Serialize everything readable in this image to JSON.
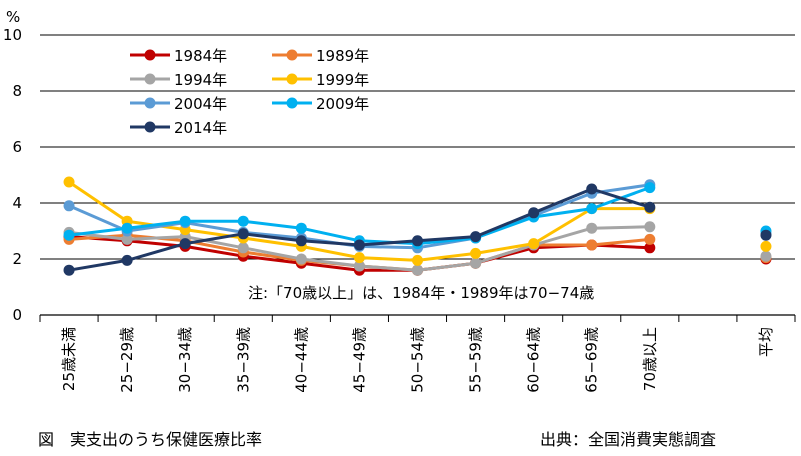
{
  "chart_data": {
    "type": "line",
    "y_unit": "%",
    "ylim": [
      0,
      10
    ],
    "yticks": [
      0,
      2,
      4,
      6,
      8,
      10
    ],
    "grid": true,
    "legend_position": "top-left",
    "categories": [
      "25歳未満",
      "25−29歳",
      "30−34歳",
      "35−39歳",
      "40−44歳",
      "45−49歳",
      "50−54歳",
      "55−59歳",
      "60−64歳",
      "65−69歳",
      "70歳以上",
      "",
      "平均"
    ],
    "series": [
      {
        "name": "1984年",
        "color": "#C00000",
        "values": [
          2.8,
          2.65,
          2.45,
          2.1,
          1.85,
          1.6,
          1.6,
          1.85,
          2.4,
          2.5,
          2.4,
          null,
          2.0
        ]
      },
      {
        "name": "1989年",
        "color": "#ED7D31",
        "values": [
          2.7,
          2.85,
          2.65,
          2.25,
          1.95,
          1.75,
          1.6,
          1.85,
          2.5,
          2.5,
          2.7,
          null,
          2.05
        ]
      },
      {
        "name": "1994年",
        "color": "#A5A5A5",
        "values": [
          2.95,
          2.7,
          2.8,
          2.4,
          2.0,
          1.75,
          1.6,
          1.85,
          2.5,
          3.1,
          3.15,
          null,
          2.1
        ]
      },
      {
        "name": "1999年",
        "color": "#FFC000",
        "values": [
          4.75,
          3.35,
          3.05,
          2.75,
          2.45,
          2.05,
          1.95,
          2.2,
          2.55,
          3.8,
          3.8,
          null,
          2.45
        ]
      },
      {
        "name": "2004年",
        "color": "#5B9BD5",
        "values": [
          3.9,
          3.0,
          3.3,
          2.95,
          2.75,
          2.45,
          2.4,
          2.75,
          3.55,
          4.35,
          4.65,
          null,
          2.9
        ]
      },
      {
        "name": "2009年",
        "color": "#00B0F0",
        "values": [
          2.85,
          3.1,
          3.35,
          3.35,
          3.1,
          2.65,
          2.55,
          2.75,
          3.5,
          3.8,
          4.55,
          null,
          3.0
        ]
      },
      {
        "name": "2014年",
        "color": "#203864",
        "values": [
          1.6,
          1.95,
          2.55,
          2.9,
          2.65,
          2.5,
          2.65,
          2.8,
          3.65,
          4.5,
          3.85,
          null,
          2.85
        ]
      }
    ],
    "annotation": "注:「70歳以上」は、1984年・1989年は70−74歳"
  },
  "captions": {
    "figure": "図　実支出のうち保健医療比率",
    "source": "出典：全国消費実態調査"
  }
}
